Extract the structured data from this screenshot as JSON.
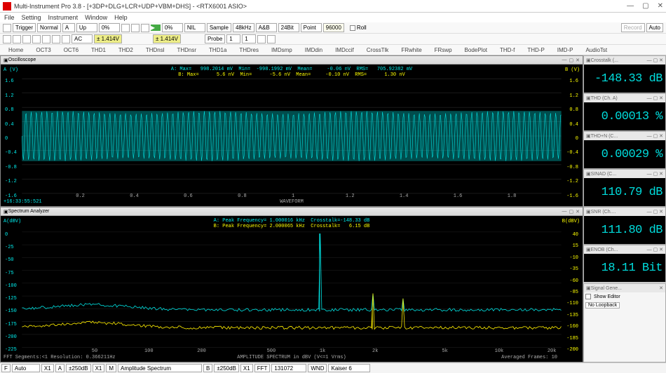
{
  "window": {
    "title": "Multi-Instrument Pro 3.8  -  [+3DP+DLG+LCR+UDP+VBM+DHS]  -  <RTX6001 ASIO>",
    "buttons": {
      "min": "—",
      "max": "▢",
      "close": "✕"
    }
  },
  "menu": [
    "File",
    "Setting",
    "Instrument",
    "Window",
    "Help"
  ],
  "toolbar1": {
    "trigger": "Trigger",
    "normal": "Normal",
    "chanA": "A",
    "up": "Up",
    "pct0a": "0%",
    "pct0b": "0%",
    "nil": "NIL",
    "sample": "Sample",
    "rate": "48kHz",
    "ab": "A&B",
    "bits": "24Bit",
    "point": "Point",
    "points": "96000",
    "roll": "Roll",
    "record": "Record",
    "auto": "Auto",
    "play": "▶",
    "ac1": "AC",
    "v1": "± 1.414V",
    "v2": "± 1.414V",
    "probe": "Probe",
    "p1": "1",
    "p2": "1"
  },
  "toolbar2": [
    "Home",
    "OCT3",
    "OCT6",
    "THD1",
    "THD2",
    "THDnsl",
    "THDnsr",
    "THD1a",
    "THDres",
    "IMDsmp",
    "IMDdin",
    "IMDccif",
    "CrossTlk",
    "FRwhite",
    "FRswp",
    "BodePlot",
    "THD-f",
    "THD-P",
    "IMD-P",
    "AudioTst"
  ],
  "osc": {
    "title": "Oscilloscope",
    "info_a": "A: Max=   998.2014 mV  Min=  -998.1992 mV  Mean=     -0.06 nV  RMS=   705.92382 mV",
    "info_b": "B: Max=      5.6 nV  Min=      -5.6 nV  Mean=     -0.10 nV  RMS=      1.30 nV",
    "ylabel_a": "A (V)",
    "ylabel_b": "B (V)",
    "xlabel": "WAVEFORM",
    "yticks": [
      "1.6",
      "1.2",
      "0.8",
      "0.4",
      "0",
      "-0.4",
      "-0.8",
      "-1.2",
      "-1.6"
    ],
    "xticks": [
      "0.2",
      "0.4",
      "0.6",
      "0.8",
      "1",
      "1.2",
      "1.4",
      "1.6",
      "1.8"
    ],
    "timestamp": "+16:33:55:521",
    "wave_color_a": "#00dddd",
    "wave_color_b": "#ffee00",
    "amplitude_a": 0.7,
    "amplitude_b": 0.003,
    "bg": "#000000"
  },
  "spec": {
    "title": "Spectrum Analyzer",
    "info_a": "A: Peak Frequency= 1.000016 kHz  Crosstalk=-148.33 dB",
    "info_b": "B: Peak Frequency= 2.000065 kHz  Crosstalk=   6.15 dB",
    "ylabel_a": "A(dBV)",
    "ylabel_b": "B(dBV)",
    "xlabel": "AMPLITUDE SPECTRUM in dBV (V<=1 Vrms)",
    "yticks_a": [
      "0",
      "-25",
      "-50",
      "-75",
      "-100",
      "-125",
      "-150",
      "-175",
      "-200",
      "-225"
    ],
    "yticks_b": [
      "40",
      "15",
      "-10",
      "-35",
      "-60",
      "-85",
      "-110",
      "-135",
      "-160",
      "-185",
      "-200"
    ],
    "xticks": [
      "50",
      "100",
      "200",
      "500",
      "1k",
      "2k",
      "5k",
      "10k",
      "20k"
    ],
    "footer_l": "FFT Segments:<1    Resolution: 0.366211Hz",
    "footer_r": "Averaged Frames: 10",
    "trace_color_a": "#00dddd",
    "trace_color_b": "#ffee00",
    "peak_freq_a": 1000,
    "peak_freq_b": 2000,
    "floor_a": -155,
    "floor_b": -190,
    "peak_val_a": -3,
    "peak_val_b": -148
  },
  "meters": [
    {
      "title": "Crosstalk (...",
      "value": "-148.33 dB"
    },
    {
      "title": "THD (Ch. A)",
      "value": "0.00013 %"
    },
    {
      "title": "THD+N (C...",
      "value": "0.00029 %"
    },
    {
      "title": "SINAD (C...",
      "value": "110.79 dB"
    },
    {
      "title": "SNR (Ch....",
      "value": "111.80 dB"
    },
    {
      "title": "ENOB (Ch...",
      "value": "18.11 Bit"
    }
  ],
  "siggen": {
    "title": "Signal Gene...",
    "show_editor": "Show Editor",
    "loopback": "No Loopback"
  },
  "status": {
    "f": "F",
    "auto": "Auto",
    "x1a": "X1",
    "a": "A",
    "m250a": "±250dB",
    "x1b": "X1",
    "m": "M",
    "spectrum": "Amplitude Spectrum",
    "b": "B",
    "m250b": "±250dB",
    "x1c": "X1",
    "fft": "FFT",
    "fftsize": "131072",
    "wnd": "WND",
    "window": "Kaiser 6"
  }
}
